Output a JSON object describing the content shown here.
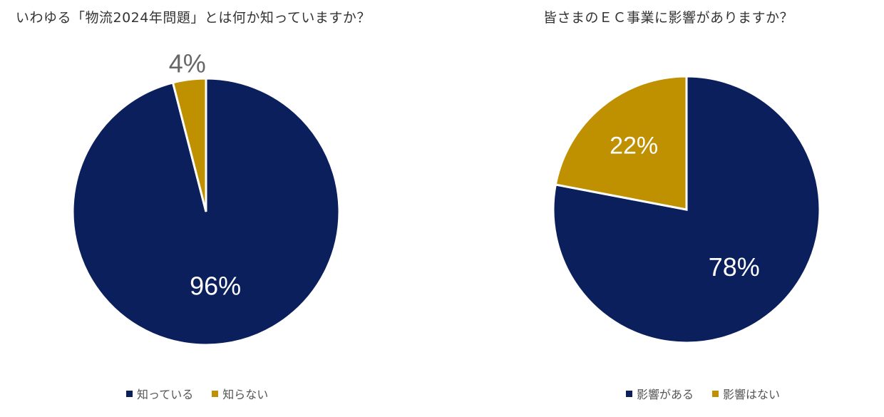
{
  "colors": {
    "navy": "#0b1f5c",
    "gold": "#bf9000",
    "white_label": "#ffffff",
    "outside_label": "#666666"
  },
  "chart_data": [
    {
      "type": "pie",
      "title": "いわゆる「物流2024年問題」とは何か知っていますか？",
      "categories": [
        "知っている",
        "知らない"
      ],
      "values": [
        96,
        4
      ],
      "labels": [
        "96%",
        "4%"
      ],
      "colors": [
        "#0b1f5c",
        "#bf9000"
      ],
      "legend": "bottom"
    },
    {
      "type": "pie",
      "title": "皆さまのＥＣ事業に影響がありますか？",
      "categories": [
        "影響がある",
        "影響はない"
      ],
      "values": [
        78,
        22
      ],
      "labels": [
        "78%",
        "22%"
      ],
      "colors": [
        "#0b1f5c",
        "#bf9000"
      ],
      "legend": "bottom"
    }
  ]
}
